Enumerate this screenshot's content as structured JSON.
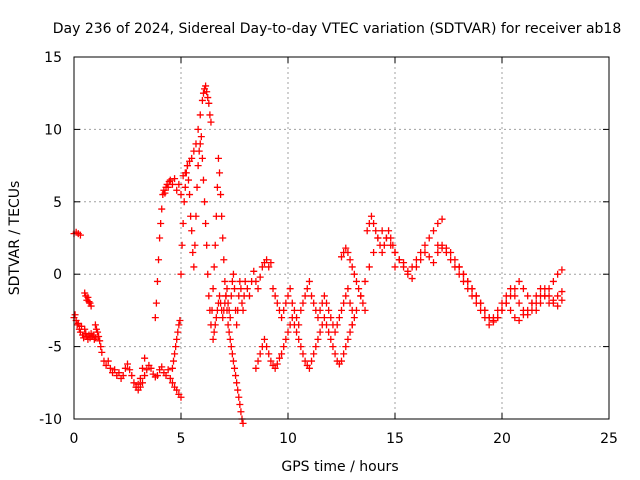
{
  "chart_data": {
    "type": "scatter",
    "title": "Day 236 of 2024, Sidereal Day-to-day VTEC variation (SDTVAR) for receiver ab18",
    "xlabel": "GPS time / hours",
    "ylabel": "SDTVAR / TECUs",
    "xlim": [
      0,
      25
    ],
    "ylim": [
      -10,
      15
    ],
    "xticks": [
      0,
      5,
      10,
      15,
      20,
      25
    ],
    "yticks": [
      -10,
      -5,
      0,
      5,
      10,
      15
    ],
    "xtick_labels": [
      "0",
      "5",
      "10",
      "15",
      "20",
      "25"
    ],
    "ytick_labels": [
      "-10",
      "-5",
      "0",
      "5",
      "10",
      "15"
    ],
    "grid": true,
    "marker": "plus",
    "color": "#ff0000",
    "series": [
      {
        "name": "SDTVAR",
        "x": [
          0.0,
          0.1,
          0.2,
          0.3,
          0.0,
          0.05,
          0.1,
          0.15,
          0.2,
          0.25,
          0.3,
          0.35,
          0.4,
          0.45,
          0.5,
          0.55,
          0.6,
          0.65,
          0.7,
          0.75,
          0.8,
          0.85,
          0.9,
          0.95,
          1.0,
          0.5,
          0.55,
          0.6,
          0.65,
          0.7,
          0.75,
          0.8,
          1.0,
          1.05,
          1.1,
          1.15,
          1.2,
          1.25,
          1.3,
          1.4,
          1.5,
          1.6,
          1.7,
          1.8,
          1.9,
          2.0,
          2.1,
          2.2,
          2.3,
          2.4,
          2.5,
          2.6,
          2.7,
          2.8,
          2.9,
          3.0,
          3.1,
          3.2,
          3.3,
          2.9,
          3.0,
          3.1,
          3.2,
          3.3,
          3.4,
          3.5,
          3.6,
          3.7,
          3.8,
          3.9,
          4.0,
          4.1,
          4.2,
          4.3,
          4.4,
          4.5,
          4.6,
          4.7,
          4.8,
          4.9,
          5.0,
          3.8,
          3.85,
          3.9,
          3.95,
          4.0,
          4.05,
          4.1,
          4.15,
          4.2,
          4.25,
          4.3,
          4.35,
          4.4,
          4.45,
          4.5,
          4.6,
          4.7,
          4.8,
          4.9,
          5.0,
          5.1,
          5.2,
          5.3,
          5.4,
          5.5,
          5.6,
          5.7,
          5.8,
          5.9,
          6.0,
          6.05,
          6.1,
          6.15,
          6.2,
          6.25,
          6.3,
          6.35,
          6.4,
          4.6,
          4.65,
          4.7,
          4.75,
          4.8,
          4.85,
          4.9,
          4.95,
          5.0,
          5.05,
          5.1,
          5.15,
          5.2,
          5.25,
          5.3,
          5.35,
          5.4,
          5.45,
          5.5,
          5.55,
          5.6,
          5.65,
          5.7,
          5.75,
          5.8,
          5.85,
          5.9,
          5.95,
          6.0,
          6.05,
          6.1,
          6.15,
          6.2,
          6.25,
          6.3,
          6.35,
          6.4,
          6.45,
          6.5,
          6.55,
          6.6,
          6.65,
          6.7,
          6.75,
          6.8,
          6.85,
          6.9,
          6.95,
          7.0,
          7.05,
          7.1,
          7.15,
          7.2,
          7.25,
          7.3,
          7.35,
          7.4,
          7.45,
          7.5,
          7.55,
          7.6,
          7.65,
          7.7,
          7.75,
          7.8,
          7.85,
          7.9,
          6.5,
          6.55,
          6.6,
          6.65,
          6.7,
          6.75,
          6.8,
          6.85,
          6.9,
          6.95,
          7.0,
          7.05,
          7.1,
          7.15,
          7.2,
          7.25,
          7.3,
          7.35,
          7.4,
          7.45,
          7.5,
          7.55,
          7.6,
          7.65,
          7.7,
          7.75,
          7.8,
          7.85,
          7.9,
          7.95,
          8.0,
          8.1,
          8.2,
          8.3,
          8.4,
          8.5,
          8.6,
          8.7,
          8.8,
          8.9,
          9.0,
          9.1,
          9.2,
          8.5,
          8.6,
          8.7,
          8.8,
          8.9,
          9.0,
          9.1,
          9.2,
          9.3,
          9.4,
          9.5,
          9.6,
          9.7,
          9.8,
          9.9,
          10.0,
          10.1,
          10.2,
          10.3,
          10.4,
          10.5,
          10.6,
          10.7,
          10.8,
          10.9,
          11.0,
          11.1,
          11.2,
          11.3,
          11.4,
          11.5,
          11.6,
          11.7,
          11.8,
          11.9,
          12.0,
          12.1,
          12.2,
          12.3,
          12.4,
          12.5,
          12.6,
          12.7,
          12.8,
          12.9,
          13.0,
          9.3,
          9.4,
          9.5,
          9.6,
          9.7,
          9.8,
          9.9,
          10.0,
          10.1,
          10.2,
          10.3,
          10.4,
          10.5,
          10.6,
          10.7,
          10.8,
          10.9,
          11.0,
          11.1,
          11.2,
          11.3,
          11.4,
          11.5,
          11.6,
          11.7,
          11.8,
          11.9,
          12.0,
          12.1,
          12.2,
          12.3,
          12.4,
          12.5,
          12.6,
          12.7,
          12.8,
          12.9,
          13.0,
          13.1,
          12.5,
          12.6,
          12.7,
          12.8,
          12.9,
          13.0,
          13.1,
          13.2,
          13.3,
          13.4,
          13.5,
          13.6,
          13.7,
          13.8,
          13.9,
          14.0,
          14.1,
          14.2,
          14.3,
          14.4,
          14.5,
          14.6,
          14.7,
          14.8,
          14.9,
          15.0,
          13.0,
          13.2,
          13.4,
          13.6,
          13.8,
          14.0,
          14.2,
          14.4,
          14.6,
          14.8,
          15.0,
          15.2,
          15.4,
          15.6,
          15.8,
          16.0,
          16.2,
          16.4,
          16.6,
          16.8,
          17.0,
          17.2,
          15.0,
          15.2,
          15.4,
          15.6,
          15.8,
          16.0,
          16.2,
          16.4,
          16.6,
          16.8,
          17.0,
          17.2,
          17.4,
          17.6,
          17.8,
          18.0,
          18.2,
          18.4,
          18.6,
          18.8,
          19.0,
          19.2,
          19.4,
          19.6,
          19.8,
          20.0,
          20.2,
          20.4,
          20.6,
          20.8,
          21.0,
          21.2,
          21.4,
          21.6,
          21.8,
          22.0,
          22.2,
          22.4,
          22.6,
          22.8,
          17.0,
          17.2,
          17.4,
          17.6,
          17.8,
          18.0,
          18.2,
          18.4,
          18.6,
          18.8,
          19.0,
          19.2,
          19.4,
          19.6,
          19.8,
          20.0,
          20.2,
          20.4,
          20.6,
          20.8,
          21.0,
          21.2,
          21.4,
          21.6,
          21.8,
          22.0,
          22.2,
          22.4,
          22.6,
          22.8,
          18.0,
          18.2,
          18.4,
          18.6,
          18.8,
          19.0,
          19.2,
          19.4,
          19.6,
          19.8,
          20.0,
          20.2,
          20.4,
          20.6,
          20.8,
          21.0,
          21.2,
          21.4,
          21.6,
          21.8,
          22.0,
          22.2,
          22.4,
          22.6,
          22.8
        ],
        "y": [
          2.8,
          2.9,
          2.8,
          2.7,
          -3.0,
          -2.8,
          -3.2,
          -3.5,
          -3.4,
          -3.8,
          -4.0,
          -3.6,
          -4.2,
          -4.4,
          -3.8,
          -4.1,
          -4.3,
          -4.5,
          -4.2,
          -4.4,
          -4.1,
          -4.3,
          -4.2,
          -4.5,
          -4.4,
          -1.3,
          -1.5,
          -1.8,
          -1.6,
          -1.9,
          -2.0,
          -2.2,
          -3.5,
          -3.8,
          -4.0,
          -4.3,
          -4.6,
          -5.0,
          -5.4,
          -6.0,
          -6.3,
          -6.0,
          -6.5,
          -6.8,
          -6.6,
          -7.0,
          -6.8,
          -7.2,
          -7.0,
          -6.5,
          -6.2,
          -6.6,
          -7.0,
          -7.5,
          -7.8,
          -7.6,
          -7.2,
          -6.5,
          -5.8,
          -7.8,
          -8.0,
          -7.8,
          -7.5,
          -7.0,
          -6.6,
          -6.3,
          -6.5,
          -6.9,
          -7.1,
          -7.0,
          -6.6,
          -6.4,
          -6.8,
          -7.0,
          -6.6,
          -7.2,
          -7.5,
          -7.8,
          -8.0,
          -8.3,
          -8.5,
          -3.0,
          -2.0,
          -0.5,
          1.0,
          2.5,
          3.5,
          4.5,
          5.5,
          5.8,
          5.6,
          6.0,
          6.2,
          6.0,
          6.4,
          6.5,
          6.2,
          6.6,
          5.8,
          6.2,
          5.5,
          6.8,
          7.0,
          7.5,
          7.8,
          8.0,
          8.5,
          9.0,
          10.0,
          11.0,
          12.0,
          12.5,
          12.8,
          13.0,
          12.6,
          12.2,
          11.8,
          11.0,
          10.5,
          -6.5,
          -6.0,
          -5.5,
          -5.0,
          -4.5,
          -4.0,
          -3.5,
          -3.2,
          0.0,
          2.0,
          3.5,
          5.0,
          6.0,
          7.0,
          7.5,
          6.5,
          5.5,
          4.0,
          3.0,
          1.5,
          0.5,
          2.0,
          4.0,
          6.0,
          7.5,
          8.5,
          9.0,
          9.5,
          8.0,
          6.5,
          5.0,
          3.5,
          2.0,
          0.0,
          -1.5,
          -2.5,
          -3.5,
          -2.5,
          -1.0,
          0.5,
          2.0,
          4.0,
          6.0,
          8.0,
          7.0,
          5.5,
          4.0,
          2.5,
          1.0,
          -0.5,
          -1.5,
          -2.5,
          -3.5,
          -4.0,
          -4.5,
          -5.0,
          -5.5,
          -6.0,
          -6.5,
          -7.0,
          -7.5,
          -8.0,
          -8.5,
          -9.0,
          -9.5,
          -10.0,
          -10.3,
          -4.5,
          -4.0,
          -3.5,
          -3.0,
          -2.5,
          -2.0,
          -1.5,
          -2.0,
          -2.5,
          -3.0,
          -2.5,
          -2.0,
          -1.5,
          -1.0,
          -2.0,
          -2.5,
          -3.0,
          -1.5,
          -0.5,
          0.0,
          -1.0,
          -2.5,
          -3.5,
          -2.5,
          -1.5,
          -0.5,
          -1.0,
          -2.0,
          -2.5,
          -1.5,
          -0.5,
          -1.0,
          -1.5,
          -0.5,
          0.2,
          -0.5,
          -1.0,
          -0.2,
          0.5,
          0.8,
          1.0,
          0.5,
          0.8,
          -6.5,
          -6.0,
          -5.5,
          -5.0,
          -4.5,
          -5.0,
          -5.5,
          -6.0,
          -6.3,
          -6.5,
          -6.2,
          -5.8,
          -5.5,
          -5.0,
          -4.5,
          -4.0,
          -3.5,
          -3.0,
          -3.5,
          -4.0,
          -4.5,
          -5.0,
          -5.5,
          -6.0,
          -6.3,
          -6.5,
          -6.0,
          -5.5,
          -5.0,
          -4.5,
          -4.0,
          -3.5,
          -3.0,
          -3.5,
          -4.0,
          -4.5,
          -5.0,
          -5.5,
          -6.0,
          -6.2,
          -6.0,
          -5.5,
          -5.0,
          -4.5,
          -4.0,
          -3.5,
          -1.0,
          -1.5,
          -2.0,
          -2.5,
          -3.0,
          -2.5,
          -2.0,
          -1.5,
          -1.0,
          -2.0,
          -2.5,
          -3.0,
          -3.5,
          -2.5,
          -2.0,
          -1.5,
          -1.0,
          -0.5,
          -1.5,
          -2.0,
          -2.5,
          -3.0,
          -2.5,
          -2.0,
          -1.5,
          -2.0,
          -2.5,
          -3.0,
          -3.5,
          -4.0,
          -3.5,
          -3.0,
          -2.5,
          -2.0,
          -1.5,
          -1.0,
          -2.0,
          -2.5,
          -3.0,
          1.2,
          1.5,
          1.8,
          1.5,
          1.0,
          0.5,
          0.0,
          -0.5,
          -1.0,
          -1.5,
          -2.0,
          -2.5,
          3.0,
          3.5,
          4.0,
          3.5,
          3.0,
          2.5,
          2.0,
          1.5,
          2.0,
          2.5,
          3.0,
          2.5,
          2.0,
          1.5,
          -3.5,
          -2.5,
          -1.5,
          -0.5,
          0.5,
          1.5,
          2.5,
          3.0,
          2.5,
          2.0,
          1.5,
          1.0,
          0.5,
          0.0,
          0.5,
          1.0,
          1.5,
          2.0,
          2.5,
          3.0,
          3.5,
          3.8,
          0.5,
          1.0,
          0.8,
          0.2,
          -0.3,
          0.5,
          1.0,
          1.5,
          1.2,
          0.8,
          1.5,
          2.0,
          1.8,
          1.5,
          1.0,
          0.5,
          0.0,
          -0.5,
          -1.0,
          -1.5,
          -2.0,
          -2.5,
          -3.0,
          -3.2,
          -3.0,
          -2.5,
          -2.0,
          -1.5,
          -1.0,
          -0.5,
          -1.0,
          -1.5,
          -2.0,
          -2.5,
          -2.0,
          -1.5,
          -1.0,
          -0.5,
          0.0,
          0.3,
          2.0,
          1.8,
          1.5,
          1.0,
          0.5,
          0.0,
          -0.5,
          -1.0,
          -1.5,
          -2.0,
          -2.5,
          -3.0,
          -3.5,
          -3.0,
          -2.5,
          -2.0,
          -1.5,
          -1.0,
          -1.5,
          -2.0,
          -2.5,
          -2.8,
          -2.5,
          -2.0,
          -1.5,
          -1.0,
          -1.5,
          -2.0,
          -2.2,
          -1.8,
          0.5,
          0.0,
          -0.5,
          -1.0,
          -1.5,
          -2.0,
          -2.5,
          -3.0,
          -3.3,
          -3.0,
          -2.5,
          -2.0,
          -2.5,
          -3.0,
          -3.2,
          -2.8,
          -2.5,
          -2.0,
          -1.5,
          -1.0,
          -1.5,
          -2.0,
          -1.8,
          -1.5,
          -1.2
        ]
      }
    ]
  }
}
